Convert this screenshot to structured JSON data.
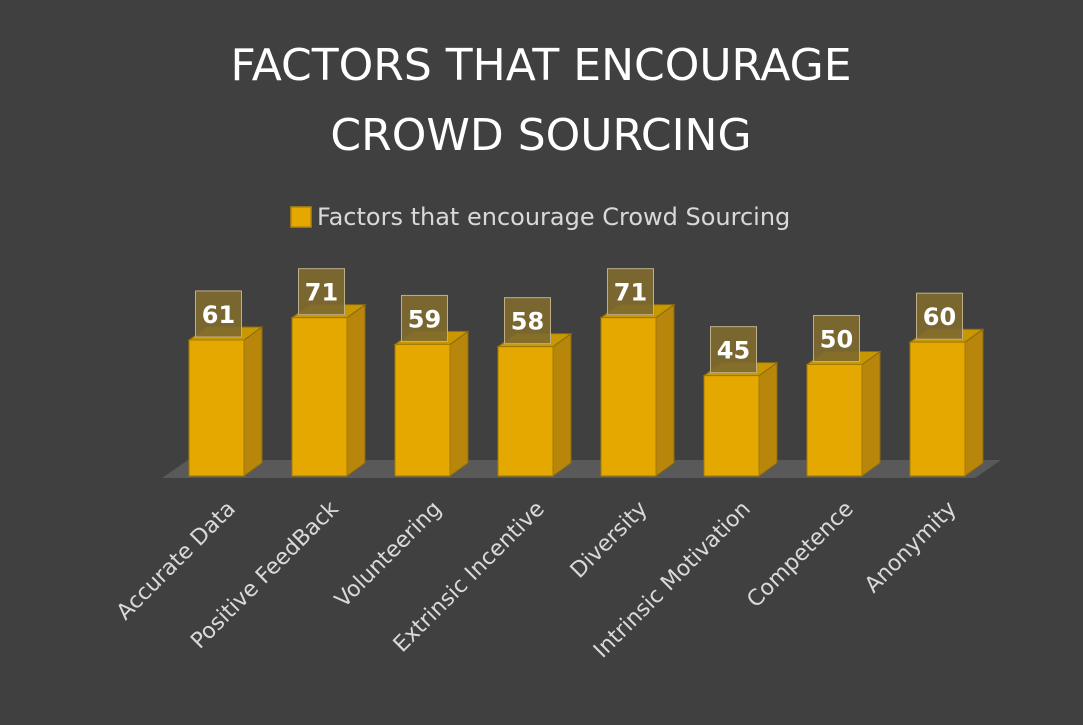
{
  "chart_data": {
    "type": "bar",
    "style": "3d-column",
    "title_lines": [
      "FACTORS THAT ENCOURAGE",
      "CROWD SOURCING"
    ],
    "legend": "Factors that encourage Crowd Sourcing",
    "legend_position": "top",
    "categories": [
      "Accurate Data",
      "Positive FeedBack",
      "Volunteering",
      "Extrinsic Incentive",
      "Diversity",
      "Intrinsic Motivation",
      "Competence",
      "Anonymity"
    ],
    "series": [
      {
        "name": "Factors that encourage Crowd Sourcing",
        "values": [
          61,
          71,
          59,
          58,
          71,
          45,
          50,
          60
        ]
      }
    ],
    "ylim": [
      0,
      71
    ],
    "grid": false,
    "data_labels": true
  },
  "colors": {
    "background": "#404040",
    "bar_front": "#E5A800",
    "bar_side": "#B8860B",
    "bar_top": "#C99700",
    "floor": "#595959",
    "label_box": "#7F6A2E",
    "text_light": "#D9D9D9",
    "title": "#FFFFFF"
  }
}
